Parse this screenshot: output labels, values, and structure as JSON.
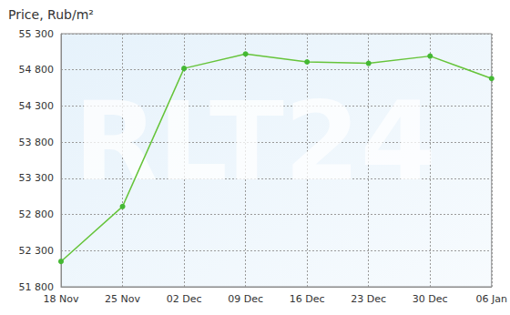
{
  "chart_data": {
    "type": "line",
    "title": "Price, Rub/m²",
    "categories": [
      "18 Nov",
      "25 Nov",
      "02 Dec",
      "09 Dec",
      "16 Dec",
      "23 Dec",
      "30 Dec",
      "06 Jan"
    ],
    "values": [
      52150,
      52910,
      54820,
      55020,
      54910,
      54890,
      54990,
      54680
    ],
    "color": "#66c43a",
    "marker": "circle",
    "ylim": [
      51800,
      55300
    ],
    "yticks": [
      {
        "value": 51800,
        "label": "51 800"
      },
      {
        "value": 52300,
        "label": "52 300"
      },
      {
        "value": 52800,
        "label": "52 800"
      },
      {
        "value": 53300,
        "label": "53 300"
      },
      {
        "value": 53800,
        "label": "53 800"
      },
      {
        "value": 54300,
        "label": "54 300"
      },
      {
        "value": 54800,
        "label": "54 800"
      },
      {
        "value": 55300,
        "label": "55 300"
      }
    ],
    "grid": true,
    "annotations": [
      "RLT24"
    ]
  }
}
